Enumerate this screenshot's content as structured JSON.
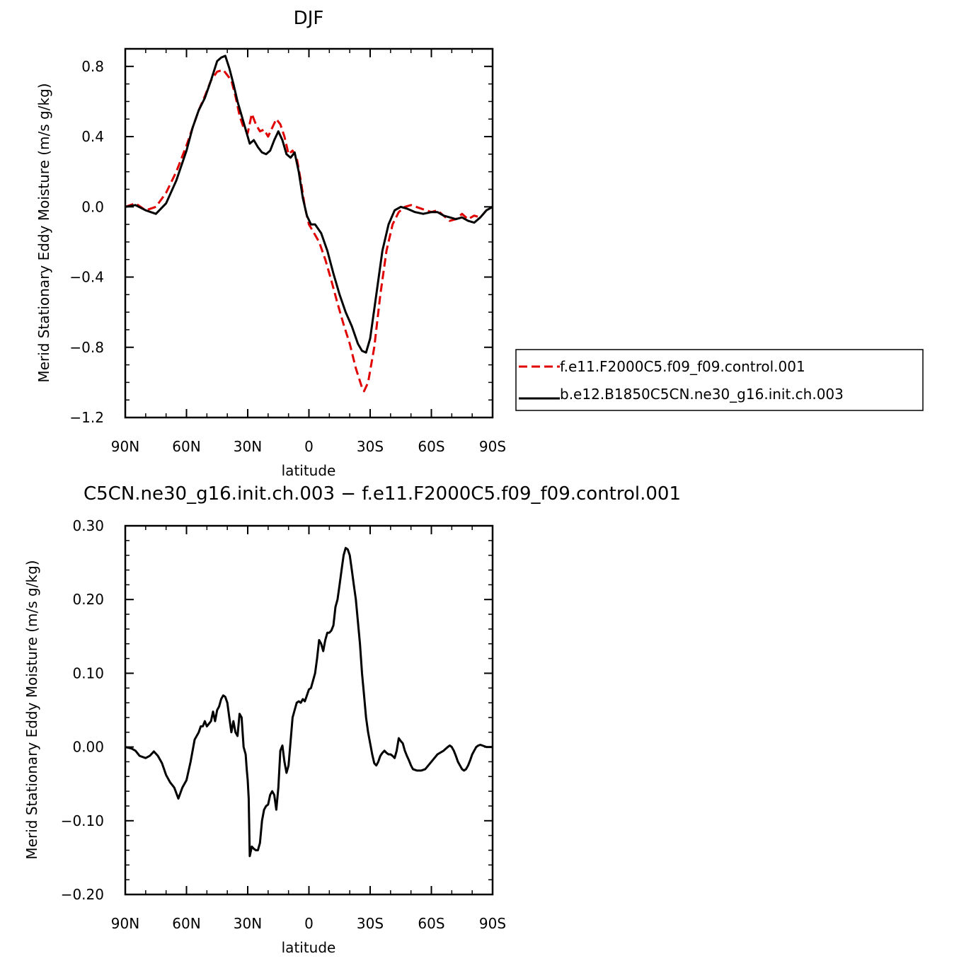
{
  "chart_data": [
    {
      "type": "line",
      "title": "DJF",
      "xlabel": "latitude",
      "ylabel": "Merid Stationary Eddy Moisture (m/s g/kg)",
      "xlim": [
        90,
        -90
      ],
      "ylim": [
        -1.2,
        0.9
      ],
      "x_ticks": [
        {
          "value": 90,
          "label": "90N"
        },
        {
          "value": 60,
          "label": "60N"
        },
        {
          "value": 30,
          "label": "30N"
        },
        {
          "value": 0,
          "label": "0"
        },
        {
          "value": -30,
          "label": "30S"
        },
        {
          "value": -60,
          "label": "60S"
        },
        {
          "value": -90,
          "label": "90S"
        }
      ],
      "y_ticks": [
        {
          "value": 0.8,
          "label": "0.8"
        },
        {
          "value": 0.4,
          "label": "0.4"
        },
        {
          "value": 0.0,
          "label": "0.0"
        },
        {
          "value": -0.4,
          "label": "−0.4"
        },
        {
          "value": -0.8,
          "label": "−0.8"
        },
        {
          "value": -1.2,
          "label": "−1.2"
        }
      ],
      "legend_position": "right",
      "series": [
        {
          "name": "f.e11.F2000C5.f09_f09.control.001",
          "color": "#e00000",
          "dash": "dashed",
          "x": [
            90,
            85,
            80,
            75,
            70,
            65,
            60,
            57,
            54,
            51,
            48,
            45,
            42,
            40,
            38,
            36,
            34,
            32,
            30,
            28,
            26,
            24,
            22,
            20,
            18,
            16,
            14,
            12,
            10,
            8,
            6,
            4,
            2,
            0,
            -2,
            -5,
            -8,
            -11,
            -14,
            -17,
            -20,
            -23,
            -26,
            -27,
            -29,
            -32,
            -35,
            -38,
            -41,
            -44,
            -47,
            -50,
            -55,
            -60,
            -63,
            -66,
            -69,
            -72,
            -75,
            -78,
            -81,
            -84,
            -87,
            -90
          ],
          "y": [
            0.0,
            0.02,
            -0.02,
            0.0,
            0.08,
            0.2,
            0.35,
            0.45,
            0.55,
            0.63,
            0.72,
            0.77,
            0.78,
            0.75,
            0.72,
            0.63,
            0.52,
            0.45,
            0.42,
            0.53,
            0.47,
            0.43,
            0.44,
            0.4,
            0.45,
            0.5,
            0.47,
            0.4,
            0.3,
            0.32,
            0.28,
            0.15,
            0.0,
            -0.1,
            -0.14,
            -0.2,
            -0.3,
            -0.42,
            -0.55,
            -0.67,
            -0.78,
            -0.92,
            -1.03,
            -1.05,
            -1.0,
            -0.8,
            -0.5,
            -0.25,
            -0.1,
            -0.03,
            0.0,
            0.01,
            -0.01,
            -0.03,
            -0.02,
            -0.05,
            -0.08,
            -0.07,
            -0.04,
            -0.07,
            -0.05,
            -0.06,
            -0.02,
            0.0
          ]
        },
        {
          "name": "b.e12.B1850C5CN.ne30_g16.init.ch.003",
          "color": "#000000",
          "dash": "solid",
          "x": [
            90,
            85,
            80,
            75,
            70,
            65,
            60,
            57,
            54,
            51,
            48,
            45,
            43,
            41,
            39,
            37,
            35,
            33,
            31,
            29,
            27,
            25,
            23,
            21,
            19,
            17,
            15,
            13,
            11,
            9,
            7,
            5,
            3,
            1,
            -1,
            -3,
            -6,
            -9,
            -12,
            -15,
            -18,
            -21,
            -24,
            -26,
            -28,
            -30,
            -33,
            -36,
            -39,
            -42,
            -45,
            -48,
            -52,
            -56,
            -60,
            -63,
            -66,
            -69,
            -72,
            -75,
            -78,
            -81,
            -84,
            -87,
            -90
          ],
          "y": [
            0.0,
            0.01,
            -0.02,
            -0.04,
            0.02,
            0.15,
            0.32,
            0.45,
            0.55,
            0.62,
            0.72,
            0.83,
            0.85,
            0.86,
            0.79,
            0.7,
            0.6,
            0.52,
            0.44,
            0.36,
            0.38,
            0.34,
            0.31,
            0.3,
            0.32,
            0.38,
            0.43,
            0.38,
            0.3,
            0.28,
            0.31,
            0.2,
            0.05,
            -0.05,
            -0.1,
            -0.1,
            -0.15,
            -0.25,
            -0.38,
            -0.5,
            -0.6,
            -0.68,
            -0.78,
            -0.82,
            -0.83,
            -0.75,
            -0.5,
            -0.25,
            -0.1,
            -0.02,
            0.0,
            -0.01,
            -0.03,
            -0.04,
            -0.03,
            -0.03,
            -0.05,
            -0.06,
            -0.07,
            -0.06,
            -0.08,
            -0.09,
            -0.06,
            -0.02,
            0.0
          ]
        }
      ]
    },
    {
      "type": "line",
      "title": "C5CN.ne30_g16.init.ch.003 − f.e11.F2000C5.f09_f09.control.001",
      "xlabel": "latitude",
      "ylabel": "Merid Stationary Eddy Moisture (m/s g/kg)",
      "xlim": [
        90,
        -90
      ],
      "ylim": [
        -0.2,
        0.3
      ],
      "x_ticks": [
        {
          "value": 90,
          "label": "90N"
        },
        {
          "value": 60,
          "label": "60N"
        },
        {
          "value": 30,
          "label": "30N"
        },
        {
          "value": 0,
          "label": "0"
        },
        {
          "value": -30,
          "label": "30S"
        },
        {
          "value": -60,
          "label": "60S"
        },
        {
          "value": -90,
          "label": "90S"
        }
      ],
      "y_ticks": [
        {
          "value": 0.3,
          "label": "0.30"
        },
        {
          "value": 0.2,
          "label": "0.20"
        },
        {
          "value": 0.1,
          "label": "0.10"
        },
        {
          "value": 0.0,
          "label": "0.00"
        },
        {
          "value": -0.1,
          "label": "−0.10"
        },
        {
          "value": -0.2,
          "label": "−0.20"
        }
      ],
      "series": [
        {
          "color": "#000000",
          "dash": "solid",
          "x": [
            90,
            87,
            85,
            83,
            80,
            78,
            76,
            74,
            72,
            70,
            68,
            66,
            64,
            62,
            60,
            58,
            56,
            54,
            53,
            52,
            51,
            50,
            48,
            47,
            46,
            45,
            44,
            43,
            42,
            41,
            40,
            39,
            38,
            37,
            36,
            35,
            34,
            33,
            32,
            31,
            30.5,
            30,
            29.5,
            29,
            28,
            27,
            26,
            25,
            24,
            23,
            22,
            21,
            20,
            19,
            18,
            17,
            16,
            15,
            14,
            13,
            12,
            11,
            10,
            8,
            7,
            6,
            5,
            4,
            3,
            2,
            1,
            0,
            -1,
            -2,
            -3,
            -4,
            -5,
            -6,
            -7,
            -8,
            -9,
            -10,
            -11,
            -12,
            -13,
            -14,
            -15,
            -16,
            -17,
            -18,
            -19,
            -20,
            -21,
            -22,
            -23,
            -24,
            -25,
            -26,
            -27,
            -28,
            -29,
            -30,
            -31,
            -32,
            -33,
            -34,
            -35,
            -36,
            -37,
            -38,
            -39,
            -40,
            -41,
            -42,
            -43,
            -44,
            -45,
            -46,
            -47,
            -48,
            -49,
            -50,
            -51,
            -53,
            -55,
            -57,
            -60,
            -63,
            -66,
            -68,
            -69,
            -70,
            -71,
            -72,
            -73,
            -74,
            -75,
            -76,
            -77,
            -78,
            -79,
            -80,
            -81,
            -82,
            -83,
            -84,
            -85,
            -86,
            -87,
            -88,
            -89,
            -90
          ],
          "y": [
            0.0,
            -0.002,
            -0.005,
            -0.012,
            -0.015,
            -0.012,
            -0.006,
            -0.012,
            -0.022,
            -0.038,
            -0.048,
            -0.055,
            -0.07,
            -0.055,
            -0.045,
            -0.02,
            0.01,
            0.02,
            0.028,
            0.028,
            0.035,
            0.028,
            0.035,
            0.048,
            0.035,
            0.05,
            0.055,
            0.065,
            0.07,
            0.068,
            0.06,
            0.04,
            0.02,
            0.035,
            0.02,
            0.015,
            0.045,
            0.04,
            0.0,
            -0.01,
            -0.03,
            -0.045,
            -0.07,
            -0.148,
            -0.135,
            -0.138,
            -0.14,
            -0.14,
            -0.13,
            -0.1,
            -0.085,
            -0.08,
            -0.078,
            -0.065,
            -0.06,
            -0.065,
            -0.085,
            -0.055,
            -0.005,
            0.002,
            -0.02,
            -0.035,
            -0.025,
            0.04,
            0.05,
            0.06,
            0.062,
            0.06,
            0.065,
            0.062,
            0.07,
            0.078,
            0.08,
            0.09,
            0.1,
            0.12,
            0.145,
            0.14,
            0.13,
            0.145,
            0.155,
            0.155,
            0.158,
            0.165,
            0.19,
            0.2,
            0.22,
            0.24,
            0.26,
            0.27,
            0.268,
            0.26,
            0.24,
            0.22,
            0.2,
            0.17,
            0.14,
            0.1,
            0.07,
            0.04,
            0.02,
            0.005,
            -0.01,
            -0.022,
            -0.025,
            -0.02,
            -0.012,
            -0.008,
            -0.005,
            -0.008,
            -0.01,
            -0.01,
            -0.012,
            -0.015,
            -0.005,
            0.012,
            0.008,
            0.005,
            -0.005,
            -0.012,
            -0.018,
            -0.025,
            -0.03,
            -0.032,
            -0.032,
            -0.03,
            -0.02,
            -0.01,
            -0.005,
            0.0,
            0.002,
            0.0,
            -0.005,
            -0.012,
            -0.02,
            -0.025,
            -0.03,
            -0.032,
            -0.03,
            -0.025,
            -0.018,
            -0.01,
            -0.005,
            0.0,
            0.002,
            0.003,
            0.002,
            0.001,
            0.0,
            0.0,
            0.0,
            0.0
          ]
        }
      ]
    }
  ]
}
